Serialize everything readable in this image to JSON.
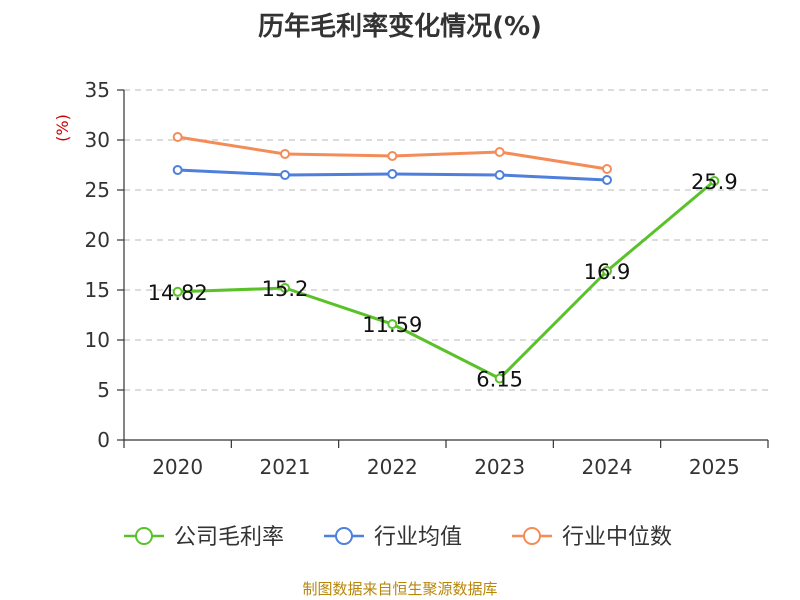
{
  "chart_data": {
    "type": "line",
    "title": "历年毛利率变化情况(%)",
    "ylabel": "(%)",
    "xlabel": "",
    "categories": [
      "2020",
      "2021",
      "2022",
      "2023",
      "2024",
      "2025"
    ],
    "ylim": [
      0,
      35
    ],
    "yticks": [
      0,
      5,
      10,
      15,
      20,
      25,
      30,
      35
    ],
    "grid": true,
    "legend_position": "bottom",
    "series": [
      {
        "name": "公司毛利率",
        "color": "#5ac229",
        "values": [
          14.82,
          15.2,
          11.59,
          6.15,
          16.9,
          25.9
        ],
        "labels": [
          "14.82",
          "15.2",
          "11.59",
          "6.15",
          "16.9",
          "25.9"
        ]
      },
      {
        "name": "行业均值",
        "color": "#4e7fdc",
        "values": [
          27.0,
          26.5,
          26.6,
          26.5,
          26.0,
          null
        ]
      },
      {
        "name": "行业中位数",
        "color": "#f48c58",
        "values": [
          30.3,
          28.6,
          28.4,
          28.8,
          27.1,
          null
        ]
      }
    ]
  },
  "footer": {
    "source": "制图数据来自恒生聚源数据库"
  }
}
